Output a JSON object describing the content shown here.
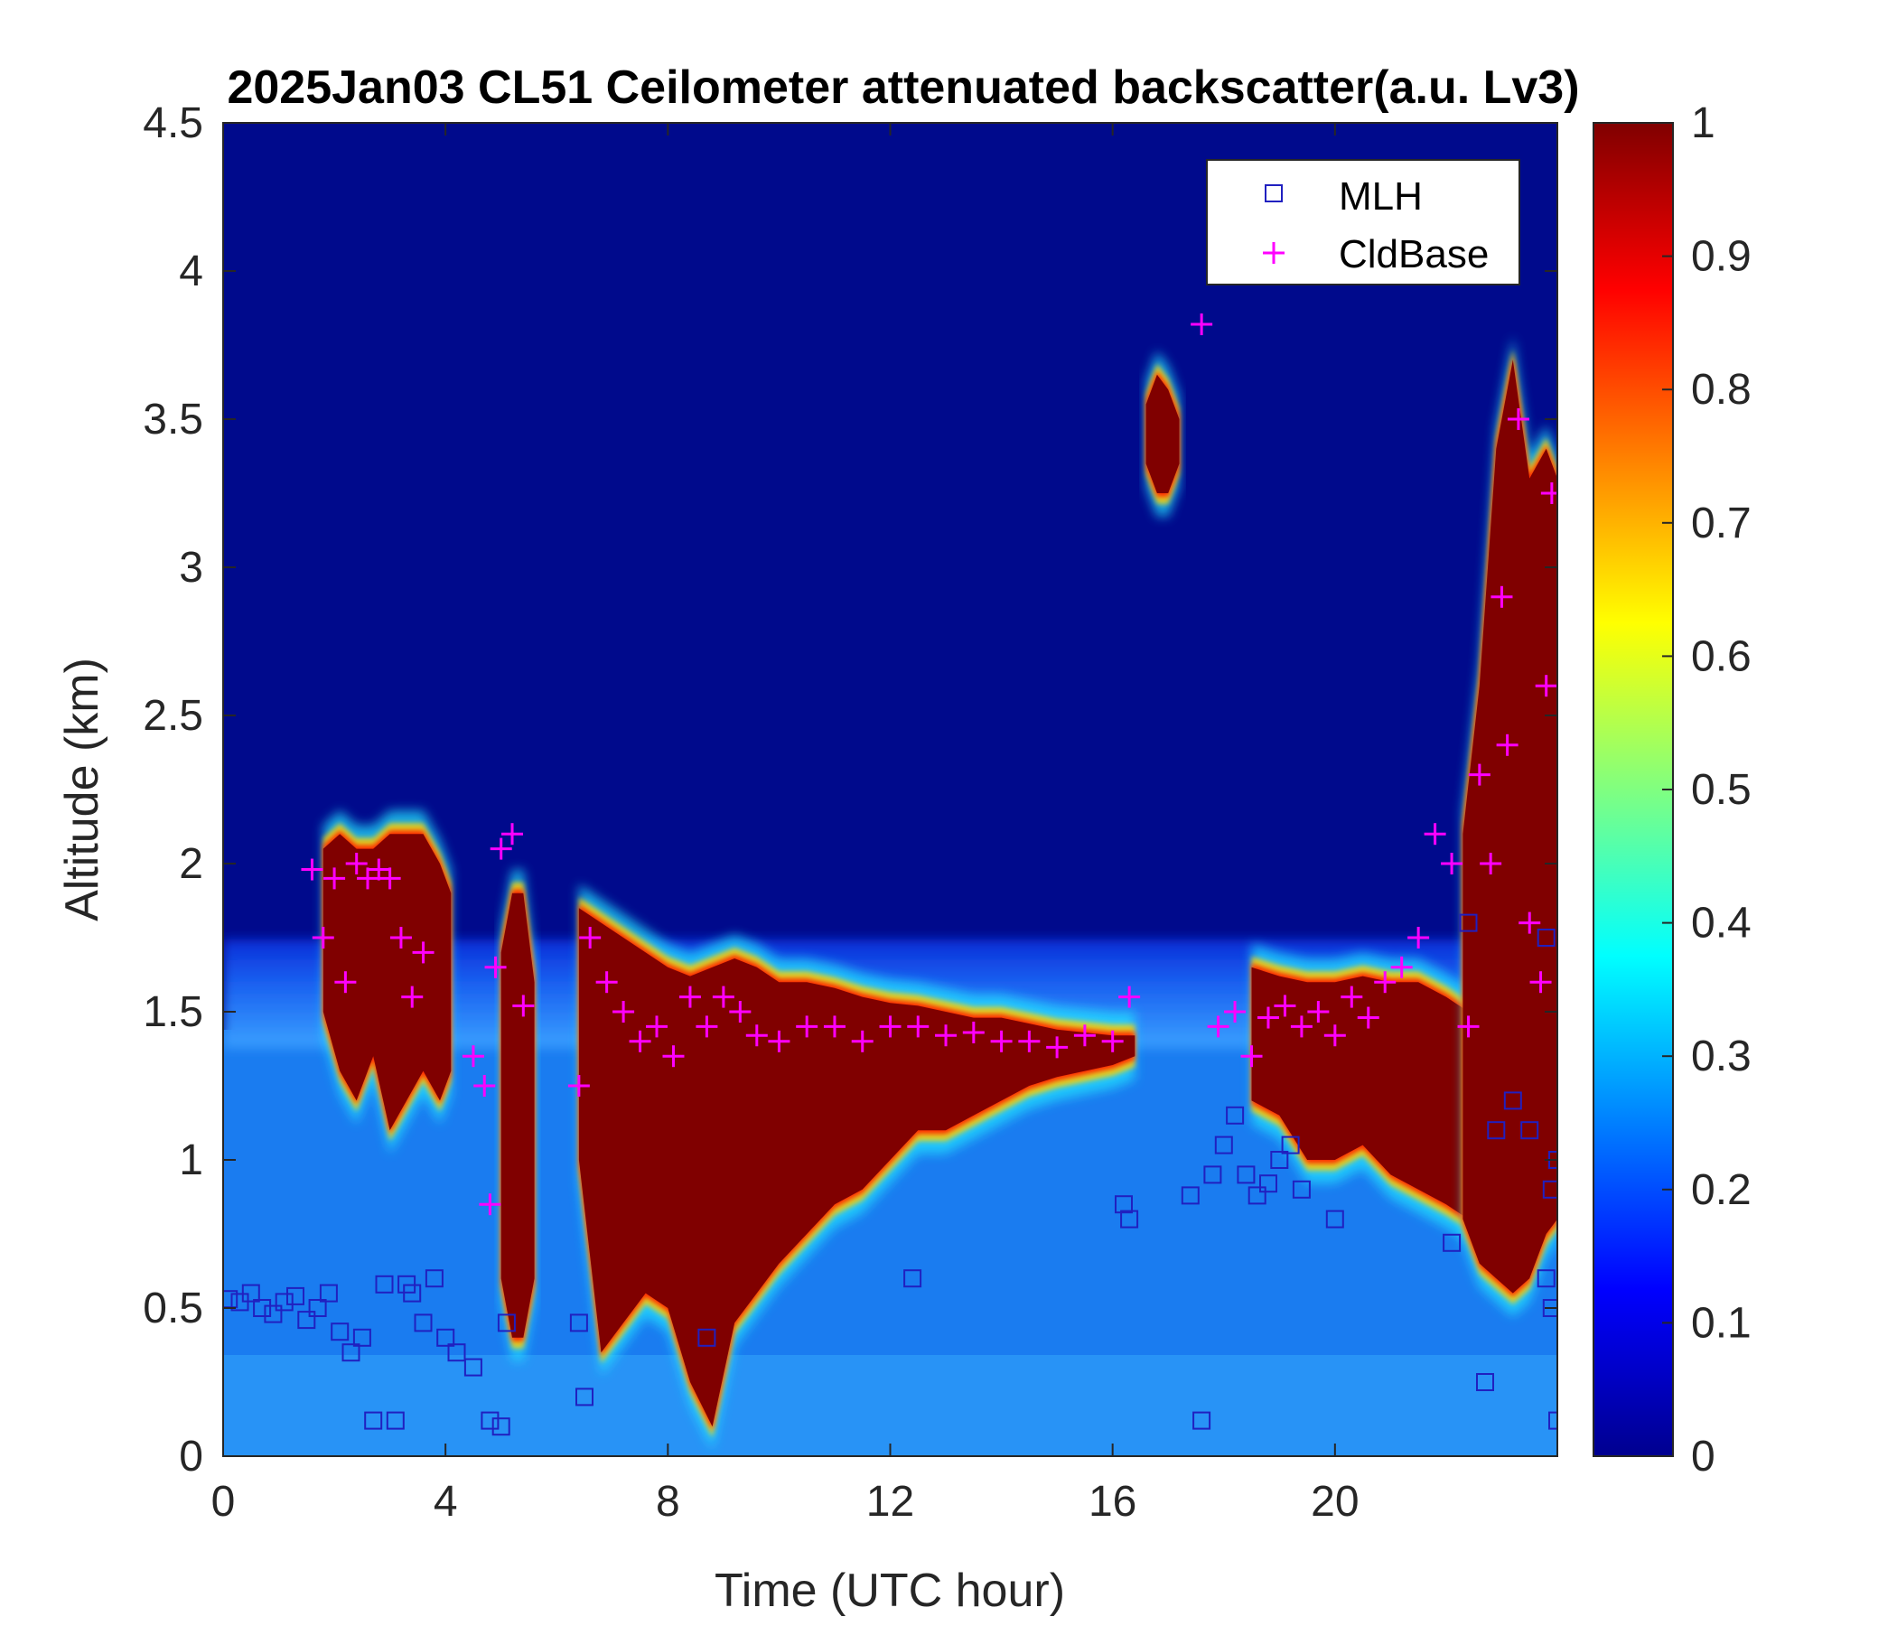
{
  "chart_data": {
    "type": "heatmap",
    "title": "2025Jan03 CL51 Ceilometer attenuated backscatter(a.u. Lv3)",
    "xlabel": "Time (UTC hour)",
    "ylabel": "Altitude (km)",
    "xlim": [
      0,
      24
    ],
    "ylim": [
      0,
      4.5
    ],
    "x_ticks": [
      0,
      4,
      8,
      12,
      16,
      20
    ],
    "x_tick_labels": [
      "0",
      "4",
      "8",
      "12",
      "16",
      "20"
    ],
    "y_ticks": [
      0,
      0.5,
      1,
      1.5,
      2,
      2.5,
      3,
      3.5,
      4,
      4.5
    ],
    "y_tick_labels": [
      "0",
      "0.5",
      "1",
      "1.5",
      "2",
      "2.5",
      "3",
      "3.5",
      "4",
      "4.5"
    ],
    "colorbar": {
      "colormap": "jet",
      "range": [
        0,
        1
      ],
      "ticks": [
        0,
        0.1,
        0.2,
        0.3,
        0.4,
        0.5,
        0.6,
        0.7,
        0.8,
        0.9,
        1
      ],
      "tick_labels": [
        "0",
        "0.1",
        "0.2",
        "0.3",
        "0.4",
        "0.5",
        "0.6",
        "0.7",
        "0.8",
        "0.9",
        "1"
      ]
    },
    "legend": {
      "placement": "top-right",
      "entries": [
        {
          "name": "MLH",
          "marker": "square",
          "color": "#2020c0"
        },
        {
          "name": "CldBase",
          "marker": "plus",
          "color": "#ff00ff"
        }
      ]
    },
    "cloud_layers": [
      {
        "name": "cloud-layer-early",
        "x": [
          1.8,
          2.1,
          2.4,
          2.7,
          3.0,
          3.3,
          3.6,
          3.9,
          4.1
        ],
        "top": [
          2.05,
          2.1,
          2.05,
          2.05,
          2.1,
          2.1,
          2.1,
          2.0,
          1.9
        ],
        "bottom": [
          1.5,
          1.3,
          1.2,
          1.35,
          1.1,
          1.2,
          1.3,
          1.2,
          1.3
        ]
      },
      {
        "name": "cloud-layer-5h",
        "x": [
          5.0,
          5.2,
          5.4,
          5.6
        ],
        "top": [
          1.7,
          1.9,
          1.9,
          1.6
        ],
        "bottom": [
          0.6,
          0.4,
          0.4,
          0.6
        ]
      },
      {
        "name": "cloud-layer-day",
        "x": [
          6.4,
          6.8,
          7.2,
          7.6,
          8.0,
          8.4,
          8.8,
          9.2,
          9.6,
          10.0,
          10.5,
          11.0,
          11.5,
          12.0,
          12.5,
          13.0,
          13.5,
          14.0,
          14.5,
          15.0,
          15.5,
          16.0,
          16.4
        ],
        "top": [
          1.85,
          1.8,
          1.75,
          1.7,
          1.65,
          1.62,
          1.65,
          1.68,
          1.65,
          1.6,
          1.6,
          1.58,
          1.55,
          1.53,
          1.52,
          1.5,
          1.48,
          1.48,
          1.46,
          1.44,
          1.43,
          1.42,
          1.42
        ],
        "bottom": [
          1.0,
          0.35,
          0.45,
          0.55,
          0.5,
          0.25,
          0.1,
          0.45,
          0.55,
          0.65,
          0.75,
          0.85,
          0.9,
          1.0,
          1.1,
          1.1,
          1.15,
          1.2,
          1.25,
          1.28,
          1.3,
          1.32,
          1.35
        ]
      },
      {
        "name": "cloud-layer-evening",
        "x": [
          18.5,
          19.0,
          19.5,
          20.0,
          20.5,
          21.0,
          21.5,
          22.0,
          22.4
        ],
        "top": [
          1.65,
          1.62,
          1.6,
          1.6,
          1.62,
          1.6,
          1.6,
          1.55,
          1.5
        ],
        "bottom": [
          1.2,
          1.15,
          1.0,
          1.0,
          1.05,
          0.95,
          0.9,
          0.85,
          0.8
        ]
      },
      {
        "name": "cloud-layer-late",
        "x": [
          22.3,
          22.6,
          22.9,
          23.2,
          23.5,
          23.8,
          24.0
        ],
        "top": [
          2.1,
          2.6,
          3.4,
          3.7,
          3.3,
          3.4,
          3.3
        ],
        "bottom": [
          0.8,
          0.65,
          0.6,
          0.55,
          0.6,
          0.75,
          0.8
        ]
      },
      {
        "name": "cloud-blob-17h",
        "x": [
          16.6,
          16.8,
          17.0,
          17.2
        ],
        "top": [
          3.55,
          3.65,
          3.6,
          3.5
        ],
        "bottom": [
          3.35,
          3.25,
          3.25,
          3.35
        ]
      }
    ],
    "series": [
      {
        "name": "MLH",
        "marker": "square",
        "x": [
          0.1,
          0.3,
          0.5,
          0.7,
          0.9,
          1.1,
          1.3,
          1.5,
          1.7,
          1.9,
          2.1,
          2.3,
          2.5,
          2.7,
          2.9,
          3.1,
          3.3,
          3.4,
          3.6,
          3.8,
          4.0,
          4.2,
          4.5,
          4.8,
          5.0,
          5.1,
          6.4,
          6.5,
          8.7,
          12.4,
          16.2,
          16.3,
          17.4,
          17.6,
          17.8,
          18.0,
          18.2,
          18.4,
          18.6,
          18.8,
          19.0,
          19.2,
          19.4,
          20.0,
          22.1,
          22.4,
          22.7,
          22.9,
          23.2,
          23.5,
          23.8,
          23.9,
          24.0,
          23.9,
          23.8,
          24.0
        ],
        "y": [
          0.53,
          0.52,
          0.55,
          0.5,
          0.48,
          0.52,
          0.54,
          0.46,
          0.5,
          0.55,
          0.42,
          0.35,
          0.4,
          0.12,
          0.58,
          0.12,
          0.58,
          0.55,
          0.45,
          0.6,
          0.4,
          0.35,
          0.3,
          0.12,
          0.1,
          0.45,
          0.45,
          0.2,
          0.4,
          0.6,
          0.85,
          0.8,
          0.88,
          0.12,
          0.95,
          1.05,
          1.15,
          0.95,
          0.88,
          0.92,
          1.0,
          1.05,
          0.9,
          0.8,
          0.72,
          1.8,
          0.25,
          1.1,
          1.2,
          1.1,
          1.75,
          0.5,
          1.0,
          0.9,
          0.6,
          0.12
        ]
      },
      {
        "name": "CldBase",
        "marker": "plus",
        "x": [
          1.6,
          1.8,
          2.0,
          2.2,
          2.4,
          2.6,
          2.8,
          3.0,
          3.2,
          3.4,
          3.6,
          4.5,
          4.7,
          4.8,
          4.9,
          5.0,
          5.2,
          5.4,
          6.4,
          6.6,
          6.9,
          7.2,
          7.5,
          7.8,
          8.1,
          8.4,
          8.7,
          9.0,
          9.3,
          9.6,
          10.0,
          10.5,
          11.0,
          11.5,
          12.0,
          12.5,
          13.0,
          13.5,
          14.0,
          14.5,
          15.0,
          15.5,
          16.0,
          16.3,
          17.6,
          17.9,
          18.2,
          18.5,
          18.8,
          19.1,
          19.4,
          19.7,
          20.0,
          20.3,
          20.6,
          20.9,
          21.2,
          21.5,
          21.8,
          22.1,
          22.4,
          22.6,
          22.8,
          23.0,
          23.1,
          23.3,
          23.5,
          23.7,
          23.8,
          23.9
        ],
        "y": [
          1.98,
          1.75,
          1.95,
          1.6,
          2.0,
          1.95,
          1.98,
          1.95,
          1.75,
          1.55,
          1.7,
          1.35,
          1.25,
          0.85,
          1.65,
          2.05,
          2.1,
          1.52,
          1.25,
          1.75,
          1.6,
          1.5,
          1.4,
          1.45,
          1.35,
          1.55,
          1.45,
          1.55,
          1.5,
          1.42,
          1.4,
          1.45,
          1.45,
          1.4,
          1.45,
          1.45,
          1.42,
          1.43,
          1.4,
          1.4,
          1.38,
          1.42,
          1.4,
          1.55,
          3.82,
          1.45,
          1.5,
          1.35,
          1.48,
          1.52,
          1.45,
          1.5,
          1.42,
          1.55,
          1.48,
          1.6,
          1.65,
          1.75,
          2.1,
          2.0,
          1.45,
          2.3,
          2.0,
          2.9,
          2.4,
          3.5,
          1.8,
          1.6,
          2.6,
          3.25
        ]
      }
    ]
  }
}
